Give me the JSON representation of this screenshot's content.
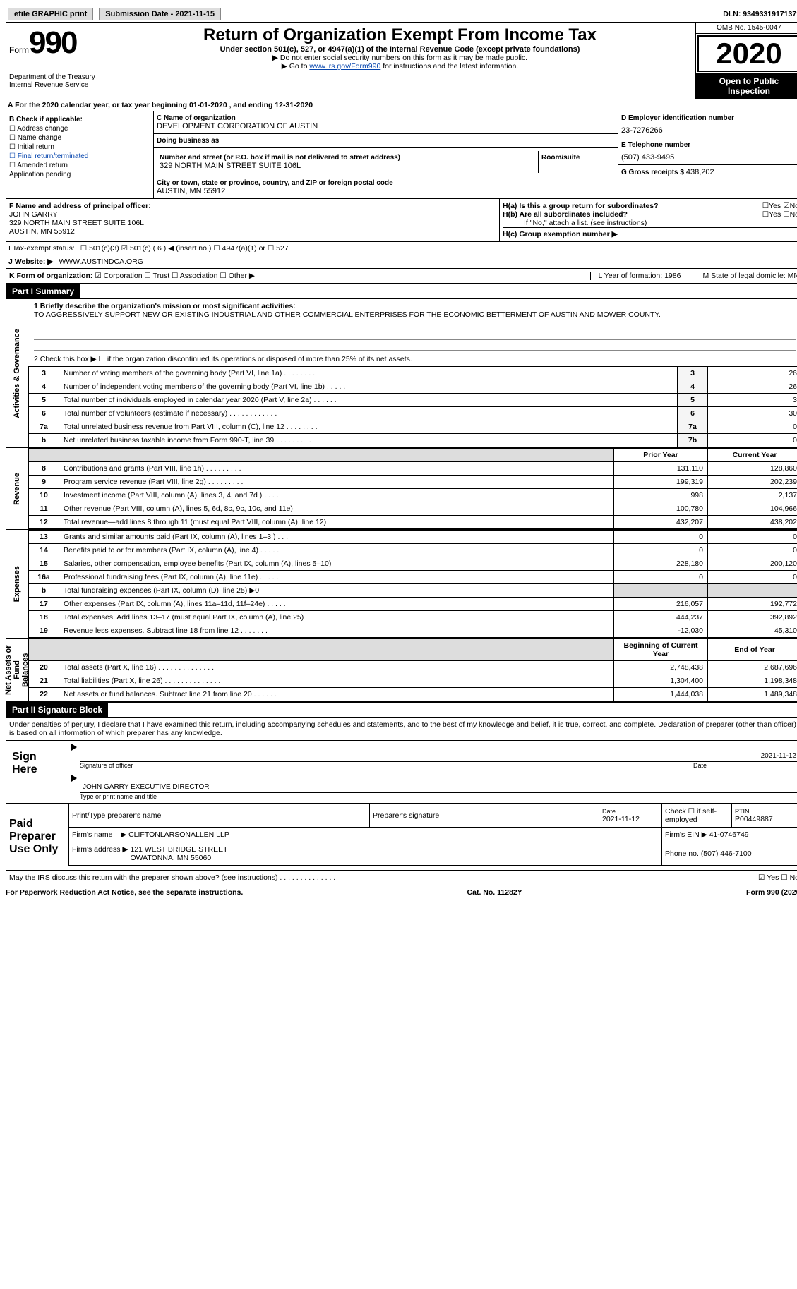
{
  "topbar": {
    "efile": "efile GRAPHIC print",
    "submission_label": "Submission Date - 2021-11-15",
    "dln": "DLN: 93493319171371"
  },
  "header": {
    "form_word": "Form",
    "form_num": "990",
    "dept": "Department of the Treasury\nInternal Revenue Service",
    "main_title": "Return of Organization Exempt From Income Tax",
    "subtitle": "Under section 501(c), 527, or 4947(a)(1) of the Internal Revenue Code (except private foundations)",
    "note1": "▶ Do not enter social security numbers on this form as it may be made public.",
    "note2_pre": "▶ Go to ",
    "note2_link": "www.irs.gov/Form990",
    "note2_post": " for instructions and the latest information.",
    "omb": "OMB No. 1545-0047",
    "year": "2020",
    "open": "Open to Public Inspection"
  },
  "period": "A For the 2020 calendar year, or tax year beginning 01-01-2020    , and ending 12-31-2020",
  "sectionB": {
    "heading": "B Check if applicable:",
    "items": [
      "☐ Address change",
      "☐ Name change",
      "☐ Initial return",
      "☐ Final return/terminated",
      "☐ Amended return",
      "Application pending"
    ]
  },
  "sectionC": {
    "name_label": "C Name of organization",
    "name": "DEVELOPMENT CORPORATION OF AUSTIN",
    "dba_label": "Doing business as",
    "dba": "",
    "street_label": "Number and street (or P.O. box if mail is not delivered to street address)",
    "room_label": "Room/suite",
    "street": "329 NORTH MAIN STREET SUITE 106L",
    "city_label": "City or town, state or province, country, and ZIP or foreign postal code",
    "city": "AUSTIN, MN  55912"
  },
  "sectionD": {
    "ein_label": "D Employer identification number",
    "ein": "23-7276266",
    "phone_label": "E Telephone number",
    "phone": "(507) 433-9495",
    "gross_label": "G Gross receipts $",
    "gross": "438,202"
  },
  "sectionF": {
    "label": "F  Name and address of principal officer:",
    "name": "JOHN GARRY",
    "addr1": "329 NORTH MAIN STREET SUITE 106L",
    "addr2": "AUSTIN, MN  55912"
  },
  "sectionH": {
    "ha": "H(a)  Is this a group return for subordinates?",
    "ha_yes": "☐Yes ☑No",
    "hb": "H(b)  Are all subordinates included?",
    "hb_yes": "☐Yes ☐No",
    "hb_note": "If \"No,\" attach a list. (see instructions)",
    "hc": "H(c)  Group exemption number ▶"
  },
  "lineI": {
    "label": "I    Tax-exempt status:",
    "opts": "☐ 501(c)(3)   ☑ 501(c) ( 6 ) ◀ (insert no.)   ☐ 4947(a)(1) or  ☐ 527"
  },
  "lineJ": {
    "label": "J   Website: ▶",
    "value": "WWW.AUSTINDCA.ORG"
  },
  "lineK": {
    "label": "K Form of organization:",
    "opts": "☑ Corporation  ☐ Trust  ☐ Association  ☐ Other ▶",
    "year_label": "L Year of formation: 1986",
    "state_label": "M State of legal domicile: MN"
  },
  "part1": {
    "title": "Part I      Summary",
    "side_gov": "Activities & Governance",
    "side_rev": "Revenue",
    "side_exp": "Expenses",
    "side_net": "Net Assets or Fund Balances",
    "line1_label": "1   Briefly describe the organization's mission or most significant activities:",
    "line1_text": "TO AGGRESSIVELY SUPPORT NEW OR EXISTING INDUSTRIAL AND OTHER COMMERCIAL ENTERPRISES FOR THE ECONOMIC BETTERMENT OF AUSTIN AND MOWER COUNTY.",
    "line2": "2   Check this box ▶ ☐  if the organization discontinued its operations or disposed of more than 25% of its net assets.",
    "rows_gov": [
      {
        "n": "3",
        "desc": "Number of voting members of the governing body (Part VI, line 1a)  .    .    .    .    .    .    .    .",
        "box": "3",
        "v": "26"
      },
      {
        "n": "4",
        "desc": "Number of independent voting members of the governing body (Part VI, line 1b)  .    .    .    .    .",
        "box": "4",
        "v": "26"
      },
      {
        "n": "5",
        "desc": "Total number of individuals employed in calendar year 2020 (Part V, line 2a)  .    .    .    .    .    .",
        "box": "5",
        "v": "3"
      },
      {
        "n": "6",
        "desc": "Total number of volunteers (estimate if necessary)  .    .    .    .    .    .    .    .    .    .    .    .",
        "box": "6",
        "v": "30"
      },
      {
        "n": "7a",
        "desc": "Total unrelated business revenue from Part VIII, column (C), line 12  .    .    .    .    .    .    .    .",
        "box": "7a",
        "v": "0"
      },
      {
        "n": "b",
        "desc": "Net unrelated business taxable income from Form 990-T, line 39  .    .    .    .    .    .    .    .    .",
        "box": "7b",
        "v": "0"
      }
    ],
    "col_prior": "Prior Year",
    "col_current": "Current Year",
    "rows_rev": [
      {
        "n": "8",
        "desc": "Contributions and grants (Part VIII, line 1h)  .    .    .    .    .    .    .    .    .",
        "p": "131,110",
        "c": "128,860"
      },
      {
        "n": "9",
        "desc": "Program service revenue (Part VIII, line 2g)  .    .    .    .    .    .    .    .    .",
        "p": "199,319",
        "c": "202,239"
      },
      {
        "n": "10",
        "desc": "Investment income (Part VIII, column (A), lines 3, 4, and 7d )    .    .    .    .",
        "p": "998",
        "c": "2,137"
      },
      {
        "n": "11",
        "desc": "Other revenue (Part VIII, column (A), lines 5, 6d, 8c, 9c, 10c, and 11e)",
        "p": "100,780",
        "c": "104,966"
      },
      {
        "n": "12",
        "desc": "Total revenue—add lines 8 through 11 (must equal Part VIII, column (A), line 12)",
        "p": "432,207",
        "c": "438,202"
      }
    ],
    "rows_exp": [
      {
        "n": "13",
        "desc": "Grants and similar amounts paid (Part IX, column (A), lines 1–3 )  .    .    .",
        "p": "0",
        "c": "0"
      },
      {
        "n": "14",
        "desc": "Benefits paid to or for members (Part IX, column (A), line 4)  .    .    .    .    .",
        "p": "0",
        "c": "0"
      },
      {
        "n": "15",
        "desc": "Salaries, other compensation, employee benefits (Part IX, column (A), lines 5–10)",
        "p": "228,180",
        "c": "200,120"
      },
      {
        "n": "16a",
        "desc": "Professional fundraising fees (Part IX, column (A), line 11e)  .    .    .    .    .",
        "p": "0",
        "c": "0"
      },
      {
        "n": "b",
        "desc": "Total fundraising expenses (Part IX, column (D), line 25) ▶0",
        "p": "",
        "c": "",
        "shade": true
      },
      {
        "n": "17",
        "desc": "Other expenses (Part IX, column (A), lines 11a–11d, 11f–24e)  .    .    .    .    .",
        "p": "216,057",
        "c": "192,772"
      },
      {
        "n": "18",
        "desc": "Total expenses. Add lines 13–17 (must equal Part IX, column (A), line 25)",
        "p": "444,237",
        "c": "392,892"
      },
      {
        "n": "19",
        "desc": "Revenue less expenses. Subtract line 18 from line 12  .    .    .    .    .    .    .",
        "p": "-12,030",
        "c": "45,310"
      }
    ],
    "col_begin": "Beginning of Current Year",
    "col_end": "End of Year",
    "rows_net": [
      {
        "n": "20",
        "desc": "Total assets (Part X, line 16)  .    .    .    .    .    .    .    .    .    .    .    .    .    .",
        "p": "2,748,438",
        "c": "2,687,696"
      },
      {
        "n": "21",
        "desc": "Total liabilities (Part X, line 26)  .    .    .    .    .    .    .    .    .    .    .    .    .    .",
        "p": "1,304,400",
        "c": "1,198,348"
      },
      {
        "n": "22",
        "desc": "Net assets or fund balances. Subtract line 21 from line 20  .    .    .    .    .    .",
        "p": "1,444,038",
        "c": "1,489,348"
      }
    ]
  },
  "part2": {
    "title": "Part II      Signature Block",
    "decl": "Under penalties of perjury, I declare that I have examined this return, including accompanying schedules and statements, and to the best of my knowledge and belief, it is true, correct, and complete. Declaration of preparer (other than officer) is based on all information of which preparer has any knowledge.",
    "sign_here": "Sign Here",
    "sig_officer": "Signature of officer",
    "sig_date": "2021-11-12",
    "date_lbl": "Date",
    "officer_name": "JOHN GARRY EXECUTIVE DIRECTOR",
    "officer_lbl": "Type or print name and title",
    "paid": "Paid Preparer Use Only",
    "prep_name_lbl": "Print/Type preparer's name",
    "prep_sig_lbl": "Preparer's signature",
    "prep_date_lbl": "Date",
    "prep_date": "2021-11-12",
    "prep_check": "Check ☐ if self-employed",
    "ptin_lbl": "PTIN",
    "ptin": "P00449887",
    "fir089_lbl": "Firm's name    ▶",
    "firm_name": "CLIFTONLARSONALLEN LLP",
    "firm_ein_lbl": "Firm's EIN ▶",
    "firm_ein": "41-0746749",
    "firm_addr_lbl": "Firm's address ▶",
    "firm_addr": "121 WEST BRIDGE STREET\nOWATONNA, MN  55060",
    "firm_phone_lbl": "Phone no.",
    "firm_phone": "(507) 446-7100",
    "discuss": "May the IRS discuss this return with the preparer shown above? (see instructions)  .    .    .    .    .    .    .    .    .    .    .    .    .    .",
    "discuss_ans": "☑ Yes  ☐ No"
  },
  "footer": {
    "left": "For Paperwork Reduction Act Notice, see the separate instructions.",
    "mid": "Cat. No. 11282Y",
    "right": "Form 990 (2020)"
  }
}
